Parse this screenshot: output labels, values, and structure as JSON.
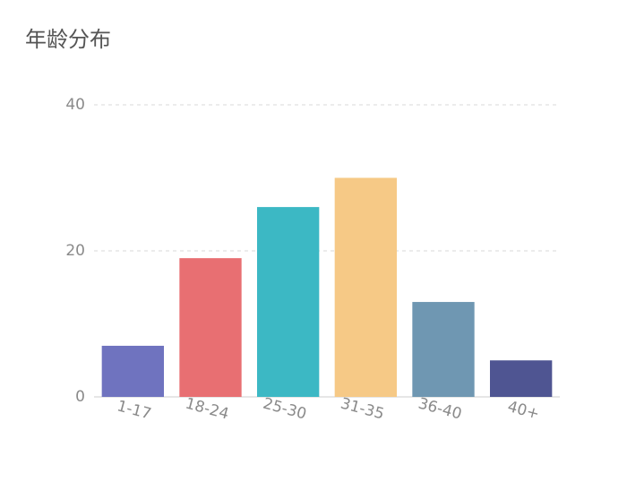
{
  "chart_data": {
    "type": "bar",
    "title": "年龄分布",
    "categories": [
      "1-17",
      "18-24",
      "25-30",
      "31-35",
      "36-40",
      "40+"
    ],
    "values": [
      7,
      19,
      26,
      30,
      13,
      5
    ],
    "colors": [
      "#6f73bf",
      "#e86f72",
      "#3cb8c4",
      "#f6c986",
      "#6f97b2",
      "#4f5592"
    ],
    "ylim": [
      0,
      40
    ],
    "yticks": [
      0,
      20,
      40
    ],
    "grid": true
  }
}
